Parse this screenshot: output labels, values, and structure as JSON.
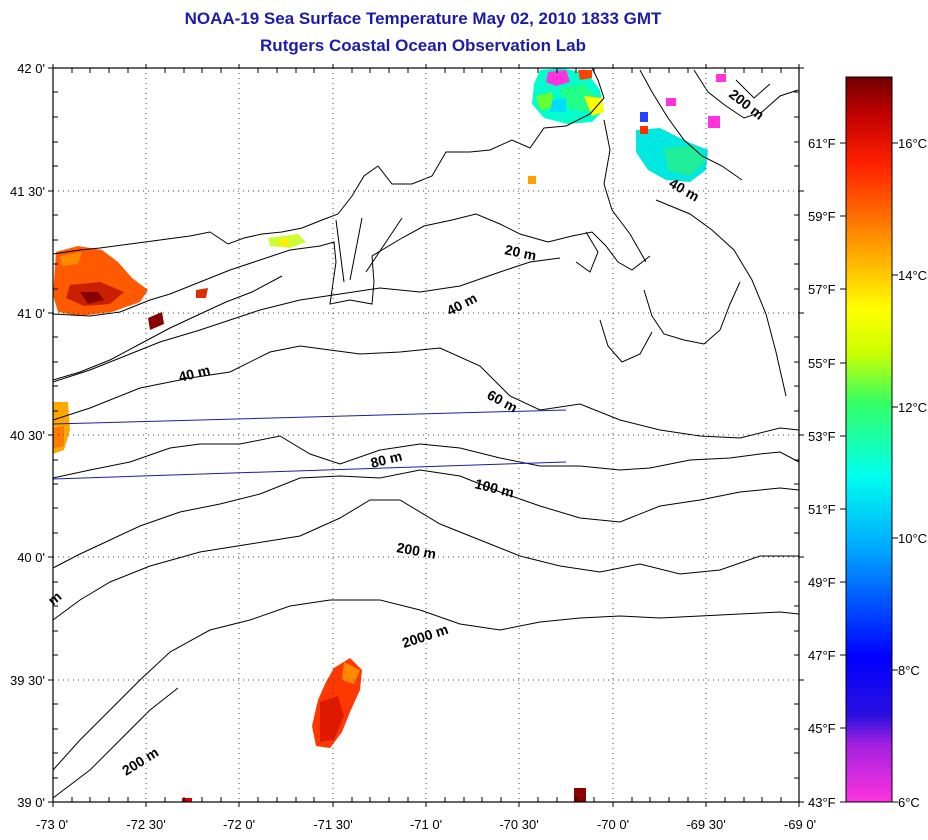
{
  "title": {
    "line1": "NOAA-19 Sea Surface Temperature May 02, 2010 1833 GMT",
    "line2": "Rutgers Coastal Ocean Observation Lab"
  },
  "axes": {
    "x_ticks": [
      "-73 0'",
      "-72 30'",
      "-72 0'",
      "-71 30'",
      "-71 0'",
      "-70 30'",
      "-70 0'",
      "-69 30'",
      "-69 0'"
    ],
    "y_ticks": [
      "42 0'",
      "41 30'",
      "41 0'",
      "40 30'",
      "40 0'",
      "39 30'",
      "39 0'"
    ]
  },
  "contours": {
    "labels": [
      "200 m",
      "40 m",
      "20 m",
      "40 m",
      "40 m",
      "60 m",
      "80 m",
      "100 m",
      "200 m",
      "2000 m",
      "200 m",
      "m"
    ]
  },
  "colorbar": {
    "fahrenheit": [
      "61°F",
      "59°F",
      "57°F",
      "55°F",
      "53°F",
      "51°F",
      "49°F",
      "47°F",
      "45°F",
      "43°F"
    ],
    "celsius": [
      "16°C",
      "14°C",
      "12°C",
      "10°C",
      "8°C",
      "6°C"
    ],
    "range_c": [
      6,
      17.5
    ],
    "colors": [
      "#ff33dd",
      "#7a1fd6",
      "#0000ff",
      "#00b4ff",
      "#00ffee",
      "#33ff55",
      "#ffff00",
      "#ffa000",
      "#ff4800",
      "#d00000",
      "#7a0000"
    ]
  },
  "grid": true
}
